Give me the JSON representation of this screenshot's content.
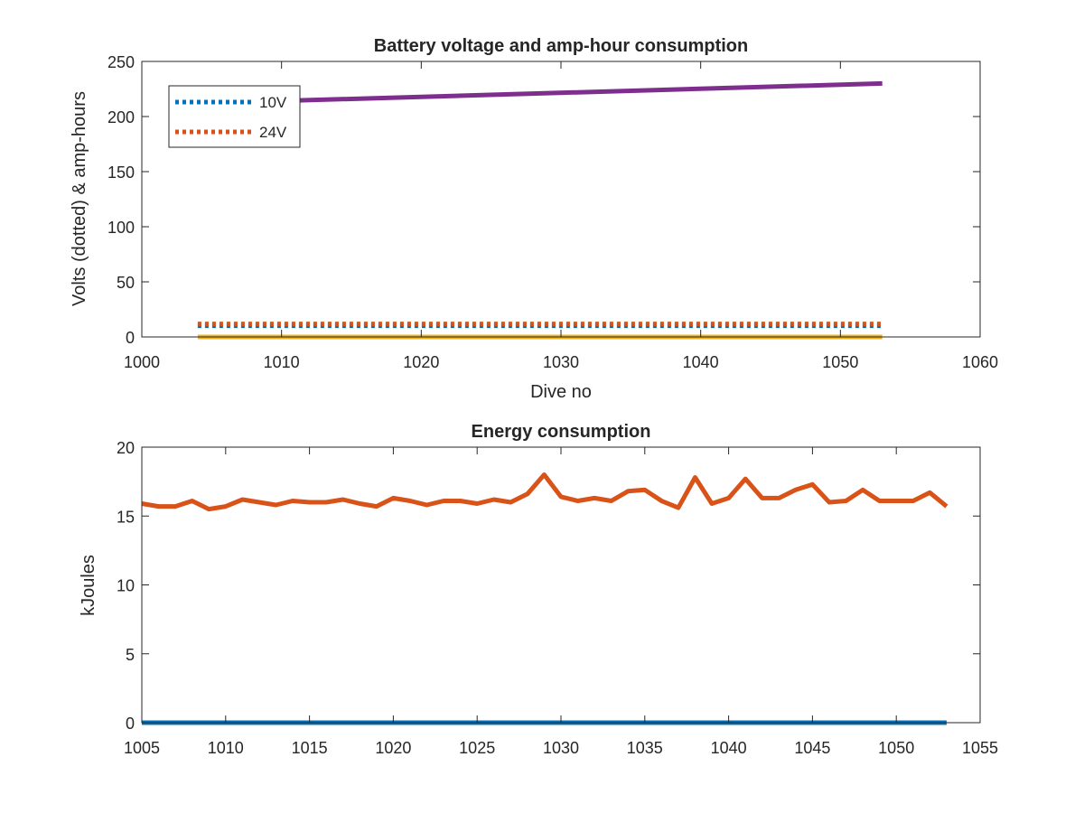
{
  "chart_data": [
    {
      "type": "line",
      "title": "Battery voltage and amp-hour consumption",
      "xlabel": "Dive no",
      "ylabel": "Volts (dotted) & amp-hours",
      "xlim": [
        1000,
        1060
      ],
      "ylim": [
        0,
        250
      ],
      "xticks": [
        1000,
        1010,
        1020,
        1030,
        1040,
        1050,
        1060
      ],
      "yticks": [
        0,
        50,
        100,
        150,
        200,
        250
      ],
      "grid": false,
      "legend_position": "top-left",
      "series": [
        {
          "name": "10V",
          "style": "dotted",
          "color": "#0072BD",
          "x": [
            1004,
            1053
          ],
          "y": [
            10.2,
            10.2
          ]
        },
        {
          "name": "24V",
          "style": "dotted",
          "color": "#D95319",
          "x": [
            1004,
            1053
          ],
          "y": [
            11.8,
            11.8
          ]
        },
        {
          "style": "solid",
          "color": "#EDB120",
          "x": [
            1004,
            1053
          ],
          "y": [
            0,
            0
          ]
        },
        {
          "style": "solid",
          "color": "#7E2F8E",
          "x": [
            1004,
            1053
          ],
          "y": [
            212,
            230
          ]
        }
      ]
    },
    {
      "type": "line",
      "title": "Energy consumption",
      "xlabel": "",
      "ylabel": "kJoules",
      "xlim": [
        1005,
        1055
      ],
      "ylim": [
        0,
        20
      ],
      "xticks": [
        1005,
        1010,
        1015,
        1020,
        1025,
        1030,
        1035,
        1040,
        1045,
        1050,
        1055
      ],
      "yticks": [
        0,
        5,
        10,
        15,
        20
      ],
      "grid": false,
      "series": [
        {
          "style": "solid",
          "color": "#D95319",
          "x": [
            1005,
            1006,
            1007,
            1008,
            1009,
            1010,
            1011,
            1012,
            1013,
            1014,
            1015,
            1016,
            1017,
            1018,
            1019,
            1020,
            1021,
            1022,
            1023,
            1024,
            1025,
            1026,
            1027,
            1028,
            1029,
            1030,
            1031,
            1032,
            1033,
            1034,
            1035,
            1036,
            1037,
            1038,
            1039,
            1040,
            1041,
            1042,
            1043,
            1044,
            1045,
            1046,
            1047,
            1048,
            1049,
            1050,
            1051,
            1052,
            1053
          ],
          "y": [
            15.9,
            15.7,
            15.7,
            16.1,
            15.5,
            15.7,
            16.2,
            16.0,
            15.8,
            16.1,
            16.0,
            16.0,
            16.2,
            15.9,
            15.7,
            16.3,
            16.1,
            15.8,
            16.1,
            16.1,
            15.9,
            16.2,
            16.0,
            16.6,
            18.0,
            16.4,
            16.1,
            16.3,
            16.1,
            16.8,
            16.9,
            16.1,
            15.6,
            17.8,
            15.9,
            16.3,
            17.7,
            16.3,
            16.3,
            16.9,
            17.3,
            16.0,
            16.1,
            16.9,
            16.1,
            16.1,
            16.1,
            16.7,
            15.7
          ]
        },
        {
          "style": "solid",
          "color": "#0072BD",
          "x": [
            1005,
            1053
          ],
          "y": [
            0,
            0
          ]
        }
      ]
    }
  ]
}
